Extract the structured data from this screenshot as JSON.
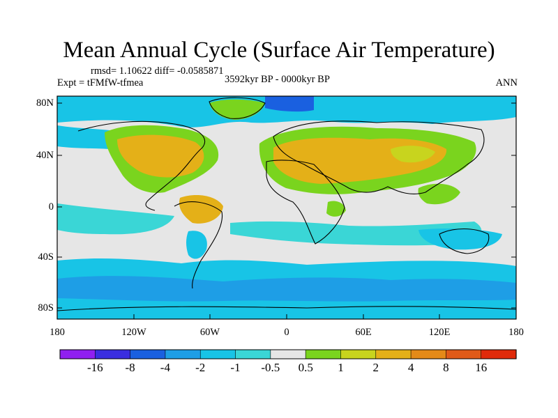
{
  "title": "Mean Annual Cycle (Surface Air Temperature)",
  "stats": "rmsd= 1.10622 diff= -0.0585871",
  "experiment": "Expt = tFMfW-tfmea",
  "period": "3592kyr BP - 0000kyr BP",
  "season": "ANN",
  "lat_ticks": [
    "80N",
    "40N",
    "0",
    "40S",
    "80S"
  ],
  "lon_ticks": [
    "180",
    "120W",
    "60W",
    "0",
    "60E",
    "120E",
    "180"
  ],
  "colorbar": {
    "labels": [
      "-16",
      "-8",
      "-4",
      "-2",
      "-1",
      "-0.5",
      "0.5",
      "1",
      "2",
      "4",
      "8",
      "16"
    ],
    "colors": [
      "#9020f0",
      "#3a2ee0",
      "#1a60e0",
      "#1e9ee6",
      "#18c4e6",
      "#3ad6d6",
      "#e6e6e6",
      "#7ad41e",
      "#c8d41e",
      "#e4b018",
      "#e48a18",
      "#e05a18",
      "#e02a0a"
    ]
  },
  "legend_colors": {
    "neutral": "#e6e6e6",
    "warm_light": "#7ad41e",
    "warm_mid": "#c8d41e",
    "warm": "#e4b018",
    "cool_light": "#3ad6d6",
    "cool": "#18c4e6",
    "cool_mid": "#1e9ee6",
    "cool_strong": "#1a60e0"
  }
}
